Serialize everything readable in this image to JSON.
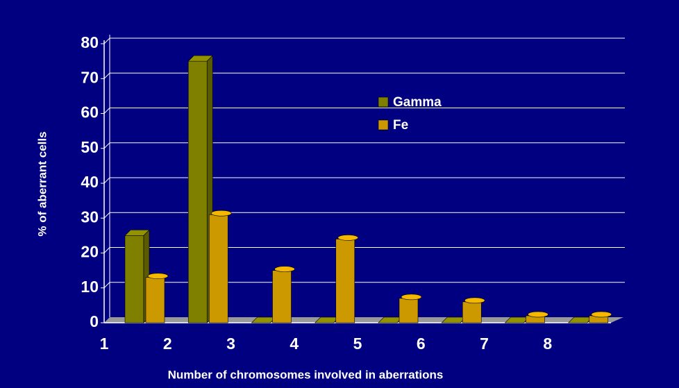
{
  "chart_data": {
    "type": "bar3d",
    "categories": [
      "1",
      "2",
      "3",
      "4",
      "5",
      "6",
      "7",
      "8"
    ],
    "series": [
      {
        "name": "Gamma",
        "color": "#808000",
        "values": [
          25,
          75,
          0,
          0,
          0,
          0,
          0,
          0
        ]
      },
      {
        "name": "Fe",
        "color": "#cc9900",
        "values": [
          13,
          31,
          15,
          24,
          7,
          6,
          2,
          2
        ]
      }
    ],
    "ylim": [
      0,
      80
    ],
    "yticks": [
      0,
      10,
      20,
      30,
      40,
      50,
      60,
      70,
      80
    ],
    "ylabel": "% of aberrant cells",
    "xlabel": "Number of chromosomes involved in aberrations",
    "grid": true
  }
}
